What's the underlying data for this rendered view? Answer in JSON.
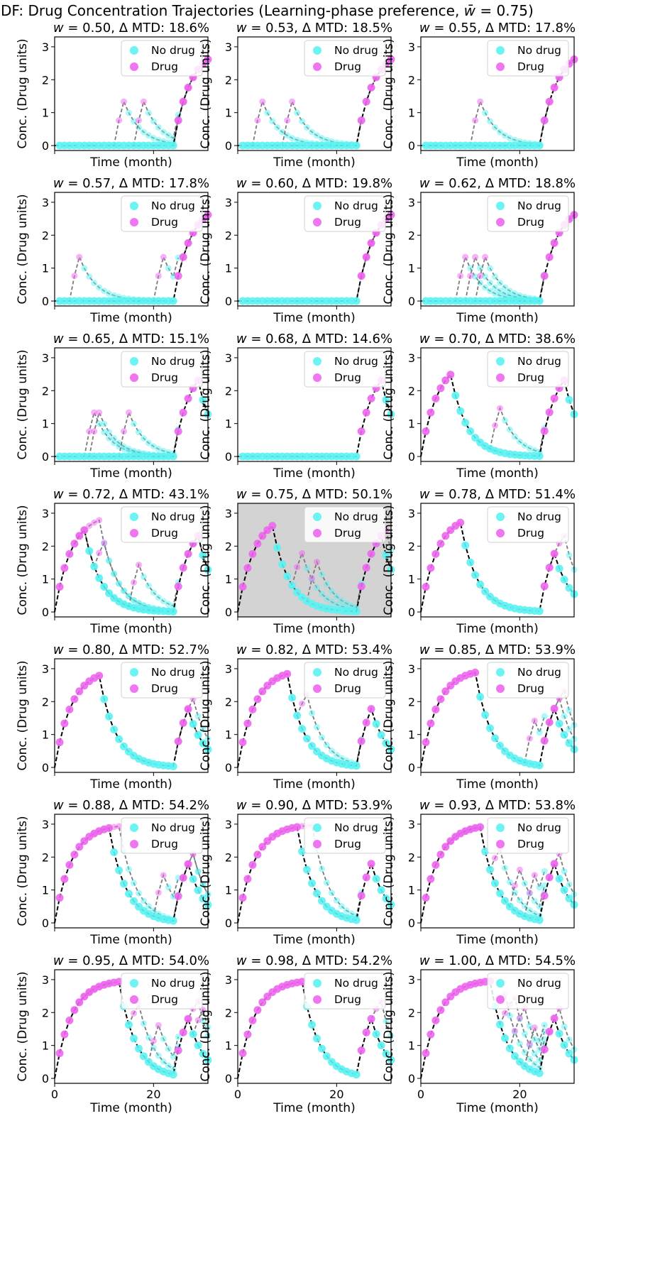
{
  "chart_data": {
    "type": "line",
    "suptitle": "DF: Drug Concentration Trajectories (Learning-phase preference, w̄ = 0.75)",
    "suptitle_text": "DF: Drug Concentration Trajectories (Learning-phase preference, ",
    "suptitle_tail": " = 0.75)",
    "xlabel": "Time (month)",
    "ylabel": "Conc. (Drug units)",
    "xlim": [
      0,
      31
    ],
    "ylim": [
      -0.15,
      3.3
    ],
    "xticks": [
      0,
      20
    ],
    "yticks": [
      0,
      1,
      2,
      3
    ],
    "legend": {
      "position": "top-right",
      "entries": [
        "No drug",
        "Drug"
      ]
    },
    "colors": {
      "no_drug": "#5cf2f2",
      "drug": "#ee66ee",
      "optimal": "#000000",
      "explore": "#7a7a7a",
      "highlight_bg": "#d3d3d3"
    },
    "panels": [
      {
        "w": "0.50",
        "dmtd": "18.6%",
        "highlight": false,
        "schedule": "0000000000000000000000001111111",
        "explore": [
          [
            12,
            2
          ],
          [
            16,
            2
          ],
          [
            24,
            2
          ],
          [
            25,
            3
          ],
          [
            26,
            3
          ]
        ]
      },
      {
        "w": "0.53",
        "dmtd": "18.5%",
        "highlight": false,
        "schedule": "0000000000000000000000001111111",
        "explore": [
          [
            3,
            2
          ],
          [
            9,
            2
          ],
          [
            26,
            3
          ]
        ]
      },
      {
        "w": "0.55",
        "dmtd": "17.8%",
        "highlight": false,
        "schedule": "0000000000000000000000001111111",
        "explore": [
          [
            10,
            2
          ],
          [
            25,
            3
          ]
        ]
      },
      {
        "w": "0.57",
        "dmtd": "17.8%",
        "highlight": false,
        "schedule": "0000000000000000000000001111111",
        "explore": [
          [
            3,
            2
          ],
          [
            20,
            2
          ],
          [
            25,
            3
          ],
          [
            26,
            3
          ]
        ]
      },
      {
        "w": "0.60",
        "dmtd": "19.8%",
        "highlight": false,
        "schedule": "0000000000000000000000001111111",
        "explore": [
          [
            24,
            3
          ],
          [
            25,
            3
          ],
          [
            26,
            3
          ]
        ]
      },
      {
        "w": "0.62",
        "dmtd": "18.8%",
        "highlight": false,
        "schedule": "0000000000000000000000001111111",
        "explore": [
          [
            7,
            2
          ],
          [
            9,
            2
          ],
          [
            11,
            2
          ],
          [
            26,
            3
          ]
        ]
      },
      {
        "w": "0.65",
        "dmtd": "15.1%",
        "highlight": false,
        "schedule": "0000000000000000000000001111100",
        "explore": [
          [
            6,
            2
          ],
          [
            7,
            2
          ],
          [
            13,
            2
          ]
        ]
      },
      {
        "w": "0.68",
        "dmtd": "14.6%",
        "highlight": false,
        "schedule": "0000000000000000000000001111100",
        "explore": []
      },
      {
        "w": "0.70",
        "dmtd": "38.6%",
        "highlight": false,
        "schedule": "1111110000000000000000001111100",
        "explore": [
          [
            14,
            2
          ]
        ]
      },
      {
        "w": "0.72",
        "dmtd": "43.1%",
        "highlight": false,
        "schedule": "1111110000000000000000001111100",
        "explore": [
          [
            4,
            2
          ],
          [
            6,
            3
          ],
          [
            8,
            2
          ],
          [
            15,
            2
          ],
          [
            26,
            3
          ],
          [
            27,
            2
          ]
        ]
      },
      {
        "w": "0.75",
        "dmtd": "50.1%",
        "highlight": true,
        "schedule": "1111111000000000000000001111100",
        "explore": [
          [
            11,
            2
          ],
          [
            14,
            2
          ],
          [
            28,
            2
          ]
        ]
      },
      {
        "w": "0.78",
        "dmtd": "51.4%",
        "highlight": false,
        "schedule": "1111111100000000000000001110000",
        "explore": [
          [
            26,
            3
          ]
        ]
      },
      {
        "w": "0.80",
        "dmtd": "52.7%",
        "highlight": false,
        "schedule": "1111111110000000000000001110000",
        "explore": [
          [
            24,
            3
          ],
          [
            26,
            2
          ]
        ]
      },
      {
        "w": "0.82",
        "dmtd": "53.4%",
        "highlight": false,
        "schedule": "1111111111000000000000001110000",
        "explore": [
          [
            12,
            2
          ]
        ]
      },
      {
        "w": "0.85",
        "dmtd": "53.9%",
        "highlight": false,
        "schedule": "1111111111100000000000001110000",
        "explore": [
          [
            21,
            2
          ],
          [
            25,
            3
          ],
          [
            26,
            3
          ]
        ]
      },
      {
        "w": "0.88",
        "dmtd": "54.2%",
        "highlight": false,
        "schedule": "1111111111100000000000001110000",
        "explore": [
          [
            7,
            2
          ],
          [
            11,
            2
          ],
          [
            20,
            2
          ],
          [
            25,
            3
          ],
          [
            26,
            2
          ]
        ]
      },
      {
        "w": "0.90",
        "dmtd": "53.9%",
        "highlight": false,
        "schedule": "1111111111110000000000001110000",
        "explore": [
          [
            12,
            3
          ]
        ]
      },
      {
        "w": "0.93",
        "dmtd": "53.8%",
        "highlight": false,
        "schedule": "1111111111110000000000001110000",
        "explore": [
          [
            4,
            4
          ],
          [
            8,
            3
          ],
          [
            14,
            2
          ],
          [
            18,
            2
          ],
          [
            21,
            2
          ],
          [
            26,
            2
          ]
        ]
      },
      {
        "w": "0.95",
        "dmtd": "54.0%",
        "highlight": false,
        "schedule": "1111111111111000000000001110000",
        "explore": [
          [
            3,
            4
          ],
          [
            6,
            4
          ],
          [
            15,
            2
          ],
          [
            19,
            2
          ],
          [
            26,
            3
          ],
          [
            28,
            2
          ]
        ]
      },
      {
        "w": "0.98",
        "dmtd": "54.2%",
        "highlight": false,
        "schedule": "1111111111111000000000001110000",
        "explore": [
          [
            27,
            2
          ]
        ]
      },
      {
        "w": "1.00",
        "dmtd": "54.5%",
        "highlight": false,
        "schedule": "1111111111111100000000001110000",
        "explore": [
          [
            15,
            2
          ],
          [
            16,
            3
          ],
          [
            18,
            3
          ],
          [
            21,
            2
          ],
          [
            25,
            3
          ]
        ]
      }
    ]
  }
}
